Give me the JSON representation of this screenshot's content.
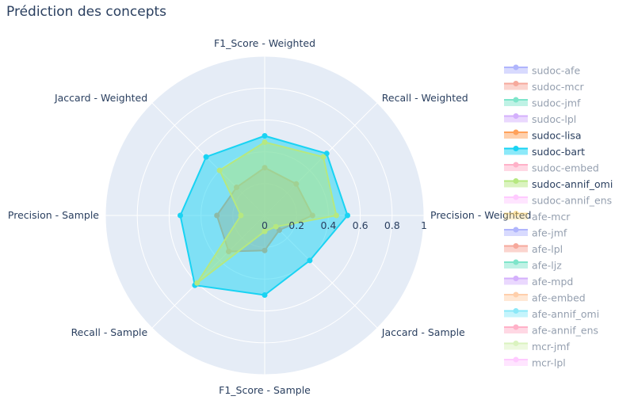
{
  "chart_data": {
    "type": "radar",
    "title": "Prédiction des concepts",
    "axes": [
      "F1_Score - Weighted",
      "Recall - Weighted",
      "Precision - Weighted",
      "Jaccard - Sample",
      "F1_Score - Sample",
      "Recall - Sample",
      "Precision - Sample",
      "Jaccard - Weighted"
    ],
    "radial_range": [
      0,
      1
    ],
    "radial_ticks": [
      "0",
      "0.2",
      "0.4",
      "0.6",
      "0.8",
      "1"
    ],
    "grid": true,
    "legend_position": "right",
    "series": [
      {
        "name": "sudoc-afe",
        "color": "#636efa",
        "visible": false,
        "values": []
      },
      {
        "name": "sudoc-mcr",
        "color": "#EF553B",
        "visible": false,
        "values": []
      },
      {
        "name": "sudoc-jmf",
        "color": "#00cc96",
        "visible": false,
        "values": []
      },
      {
        "name": "sudoc-lpl",
        "color": "#ab63fa",
        "visible": false,
        "values": []
      },
      {
        "name": "sudoc-lisa",
        "color": "#FFA15A",
        "visible": true,
        "values": [
          0.3,
          0.28,
          0.3,
          0.13,
          0.22,
          0.32,
          0.3,
          0.25
        ]
      },
      {
        "name": "sudoc-bart",
        "color": "#19d3f3",
        "visible": true,
        "values": [
          0.5,
          0.55,
          0.52,
          0.4,
          0.5,
          0.62,
          0.53,
          0.52
        ]
      },
      {
        "name": "sudoc-embed",
        "color": "#FF6692",
        "visible": false,
        "values": []
      },
      {
        "name": "sudoc-annif_omi",
        "color": "#B6E880",
        "visible": true,
        "values": [
          0.46,
          0.52,
          0.45,
          0.1,
          0.1,
          0.6,
          0.15,
          0.4
        ]
      },
      {
        "name": "sudoc-annif_ens",
        "color": "#FF97FF",
        "visible": false,
        "values": []
      },
      {
        "name": "afe-mcr",
        "color": "#FECB52",
        "visible": false,
        "values": []
      },
      {
        "name": "afe-jmf",
        "color": "#636efa",
        "visible": false,
        "values": []
      },
      {
        "name": "afe-lpl",
        "color": "#EF553B",
        "visible": false,
        "values": []
      },
      {
        "name": "afe-ljz",
        "color": "#00cc96",
        "visible": false,
        "values": []
      },
      {
        "name": "afe-mpd",
        "color": "#ab63fa",
        "visible": false,
        "values": []
      },
      {
        "name": "afe-embed",
        "color": "#FFA15A",
        "visible": false,
        "values": []
      },
      {
        "name": "afe-annif_omi",
        "color": "#19d3f3",
        "visible": false,
        "values": []
      },
      {
        "name": "afe-annif_ens",
        "color": "#FF6692",
        "visible": false,
        "values": []
      },
      {
        "name": "mcr-jmf",
        "color": "#B6E880",
        "visible": false,
        "values": []
      },
      {
        "name": "mcr-lpl",
        "color": "#FF97FF",
        "visible": false,
        "values": []
      }
    ]
  }
}
